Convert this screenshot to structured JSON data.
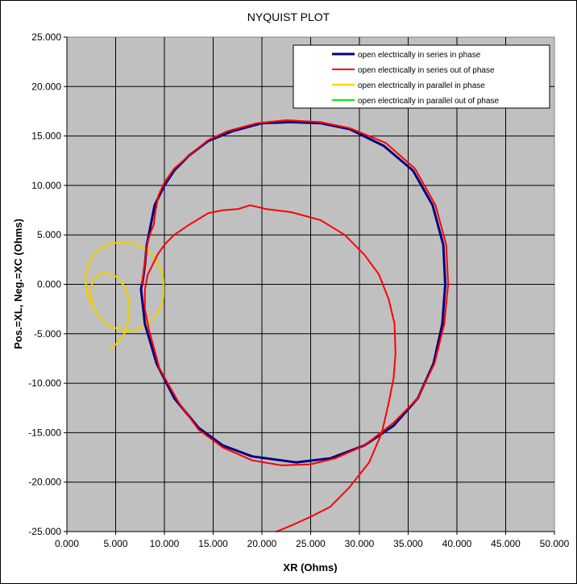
{
  "chart_data": {
    "type": "scatter",
    "title": "NYQUIST PLOT",
    "xlabel": "XR (Ohms)",
    "ylabel": "Pos.=XL, Neg.=XC (Ohms)",
    "xlim": [
      0,
      50
    ],
    "ylim": [
      -25,
      25
    ],
    "xticks": [
      0,
      5,
      10,
      15,
      20,
      25,
      30,
      35,
      40,
      45,
      50
    ],
    "yticks": [
      25,
      20,
      15,
      10,
      5,
      0,
      -5,
      -10,
      -15,
      -20,
      -25
    ],
    "xtick_labels": [
      "0.000",
      "5.000",
      "10.000",
      "15.000",
      "20.000",
      "25.000",
      "30.000",
      "35.000",
      "40.000",
      "45.000",
      "50.000"
    ],
    "ytick_labels": [
      "25.000",
      "20.000",
      "15.000",
      "10.000",
      "5.000",
      "0.000",
      "-5.000",
      "-10.000",
      "-15.000",
      "-20.000",
      "-25.000"
    ],
    "grid": true,
    "legend_position": "top-right",
    "plot_background": "#c0c0c0",
    "series": [
      {
        "name": "open electrically in series in phase",
        "color": "#000080",
        "points": [
          [
            7.6,
            -0.5
          ],
          [
            8.0,
            -4
          ],
          [
            9.2,
            -8
          ],
          [
            11,
            -11.5
          ],
          [
            13.5,
            -14.5
          ],
          [
            16,
            -16.3
          ],
          [
            19,
            -17.4
          ],
          [
            23.5,
            -18
          ],
          [
            27,
            -17.6
          ],
          [
            30.5,
            -16.3
          ],
          [
            33.5,
            -14.3
          ],
          [
            36,
            -11.5
          ],
          [
            37.6,
            -8
          ],
          [
            38.5,
            -4
          ],
          [
            38.8,
            0
          ],
          [
            38.6,
            4
          ],
          [
            37.5,
            8
          ],
          [
            35.5,
            11.5
          ],
          [
            32.5,
            14
          ],
          [
            29,
            15.7
          ],
          [
            26,
            16.3
          ],
          [
            23,
            16.4
          ],
          [
            20,
            16.3
          ],
          [
            17,
            15.5
          ],
          [
            14.5,
            14.5
          ],
          [
            12.5,
            13
          ],
          [
            11,
            11.5
          ],
          [
            10,
            10
          ],
          [
            9,
            8
          ],
          [
            8.6,
            6
          ],
          [
            8.2,
            4
          ],
          [
            8,
            2
          ],
          [
            7.8,
            0.5
          ],
          [
            7.6,
            -0.5
          ]
        ]
      },
      {
        "name": "open electrically in series out of phase",
        "color": "#ff0000",
        "points": [
          [
            21.5,
            -25
          ],
          [
            23,
            -24.4
          ],
          [
            25,
            -23.5
          ],
          [
            27,
            -22.5
          ],
          [
            29,
            -20.5
          ],
          [
            31,
            -18
          ],
          [
            32.3,
            -15
          ],
          [
            33,
            -12
          ],
          [
            33.5,
            -9.5
          ],
          [
            33.7,
            -7
          ],
          [
            33.6,
            -4
          ],
          [
            33,
            -1.5
          ],
          [
            32,
            1
          ],
          [
            30.5,
            3
          ],
          [
            28.5,
            5
          ],
          [
            26,
            6.5
          ],
          [
            23,
            7.3
          ],
          [
            20.5,
            7.6
          ],
          [
            18.8,
            8
          ],
          [
            17.5,
            7.6
          ],
          [
            16,
            7.5
          ],
          [
            14.5,
            7.2
          ],
          [
            12.5,
            6
          ],
          [
            11,
            5
          ],
          [
            10,
            4
          ],
          [
            9.3,
            3
          ],
          [
            8.8,
            2
          ],
          [
            8.3,
            1
          ],
          [
            8,
            -0.5
          ],
          [
            8,
            -2.5
          ],
          [
            8.4,
            -4.5
          ],
          [
            9.5,
            -8.5
          ],
          [
            11.5,
            -12
          ],
          [
            13.5,
            -14.7
          ],
          [
            16,
            -16.5
          ],
          [
            19,
            -17.8
          ],
          [
            22,
            -18.3
          ],
          [
            25,
            -18.2
          ],
          [
            27.5,
            -17.6
          ],
          [
            30.5,
            -16.3
          ],
          [
            33.5,
            -14
          ],
          [
            36,
            -11.5
          ],
          [
            37.7,
            -8
          ],
          [
            38.7,
            -4
          ],
          [
            39.1,
            0
          ],
          [
            38.9,
            4
          ],
          [
            37.8,
            8
          ],
          [
            35.7,
            11.7
          ],
          [
            32.7,
            14.3
          ],
          [
            29,
            15.8
          ],
          [
            26,
            16.4
          ],
          [
            22.5,
            16.6
          ],
          [
            19.5,
            16.3
          ],
          [
            16.5,
            15.5
          ],
          [
            14.5,
            14.6
          ],
          [
            12.5,
            13
          ],
          [
            11,
            11.7
          ],
          [
            10,
            10.3
          ],
          [
            9.4,
            9
          ],
          [
            9.1,
            7.5
          ],
          [
            8.9,
            6
          ],
          [
            8.6,
            5.3
          ],
          [
            8.3,
            4.3
          ],
          [
            8.1,
            3
          ],
          [
            7.9,
            1.5
          ],
          [
            7.7,
            0
          ]
        ]
      },
      {
        "name": "open electrically in parallel in phase",
        "color": "#ffcc00",
        "points": [
          [
            4.5,
            -6.5
          ],
          [
            5.3,
            -5.8
          ],
          [
            5.9,
            -5
          ],
          [
            6.3,
            -3.6
          ],
          [
            6.4,
            -2
          ],
          [
            6.1,
            -0.5
          ],
          [
            5.2,
            0.7
          ],
          [
            4.1,
            1.2
          ],
          [
            3.2,
            1
          ],
          [
            2.6,
            0.2
          ],
          [
            2.4,
            -0.9
          ],
          [
            2.7,
            -2.2
          ],
          [
            3.3,
            -3.3
          ],
          [
            4.3,
            -4.2
          ],
          [
            5.6,
            -4.6
          ],
          [
            7.1,
            -4.6
          ],
          [
            8.4,
            -3.9
          ],
          [
            9.4,
            -2.8
          ],
          [
            9.9,
            -1.3
          ],
          [
            9.9,
            0.5
          ],
          [
            9.4,
            2.1
          ],
          [
            8.4,
            3.4
          ],
          [
            7,
            4.1
          ],
          [
            5.5,
            4.3
          ],
          [
            4,
            4
          ],
          [
            2.9,
            3.2
          ],
          [
            2.2,
            2
          ],
          [
            1.9,
            0.5
          ],
          [
            2.1,
            -1
          ],
          [
            2.8,
            -2.5
          ]
        ]
      },
      {
        "name": "open electrically in parallel out of phase",
        "color": "#00ee00",
        "points": [
          [
            4.5,
            -6.5
          ],
          [
            5.3,
            -5.8
          ],
          [
            5.9,
            -5
          ],
          [
            6.3,
            -3.6
          ],
          [
            6.4,
            -2
          ],
          [
            6.1,
            -0.5
          ],
          [
            5.2,
            0.7
          ],
          [
            4.1,
            1.2
          ],
          [
            3.2,
            1
          ],
          [
            2.6,
            0.2
          ],
          [
            2.4,
            -0.9
          ],
          [
            2.7,
            -2.2
          ],
          [
            3.3,
            -3.3
          ],
          [
            4.3,
            -4.2
          ],
          [
            5.6,
            -4.6
          ],
          [
            7.1,
            -4.6
          ],
          [
            8.4,
            -3.9
          ],
          [
            9.4,
            -2.8
          ],
          [
            9.9,
            -1.3
          ],
          [
            9.9,
            0.5
          ],
          [
            9.4,
            2.1
          ],
          [
            8.4,
            3.4
          ],
          [
            7,
            4.1
          ],
          [
            5.5,
            4.3
          ],
          [
            4,
            4
          ],
          [
            2.9,
            3.2
          ],
          [
            2.2,
            2
          ],
          [
            1.9,
            0.5
          ],
          [
            2.1,
            -1
          ],
          [
            2.8,
            -2.5
          ]
        ]
      }
    ]
  }
}
